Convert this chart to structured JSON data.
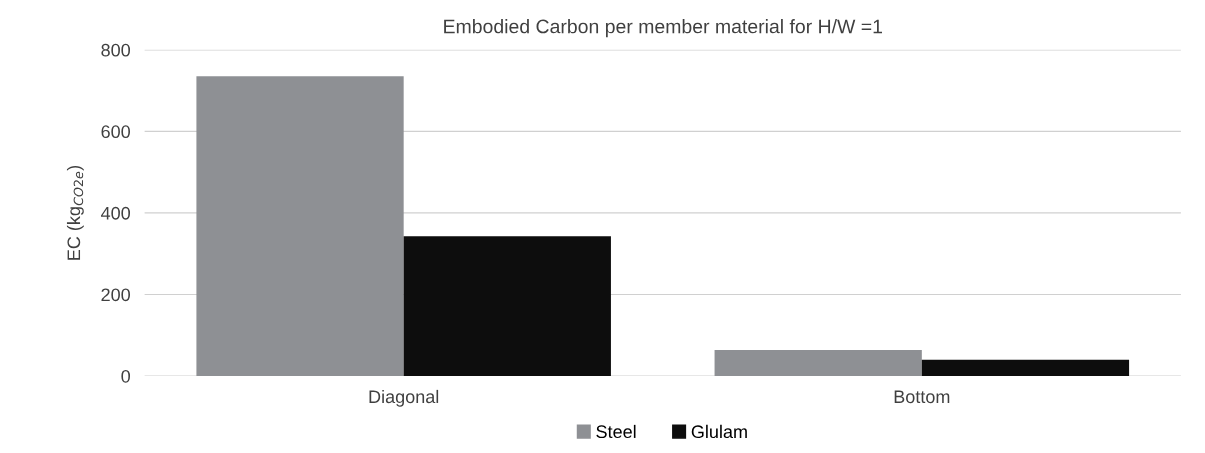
{
  "chart_data": {
    "type": "bar",
    "title": "Embodied Carbon per member material for H/W =1",
    "ylabel": "EC (kg$_{CO2e}$)",
    "categories": [
      "Diagonal",
      "Bottom"
    ],
    "series": [
      {
        "name": "Steel",
        "color": "#8e9094",
        "values": [
          735,
          64
        ]
      },
      {
        "name": "Glulam",
        "color": "#0d0d0d",
        "values": [
          343,
          40
        ]
      }
    ],
    "ylim": [
      0,
      800
    ],
    "yticks": [
      0,
      200,
      400,
      600,
      800
    ],
    "grid": "y",
    "legend": "bottom"
  }
}
